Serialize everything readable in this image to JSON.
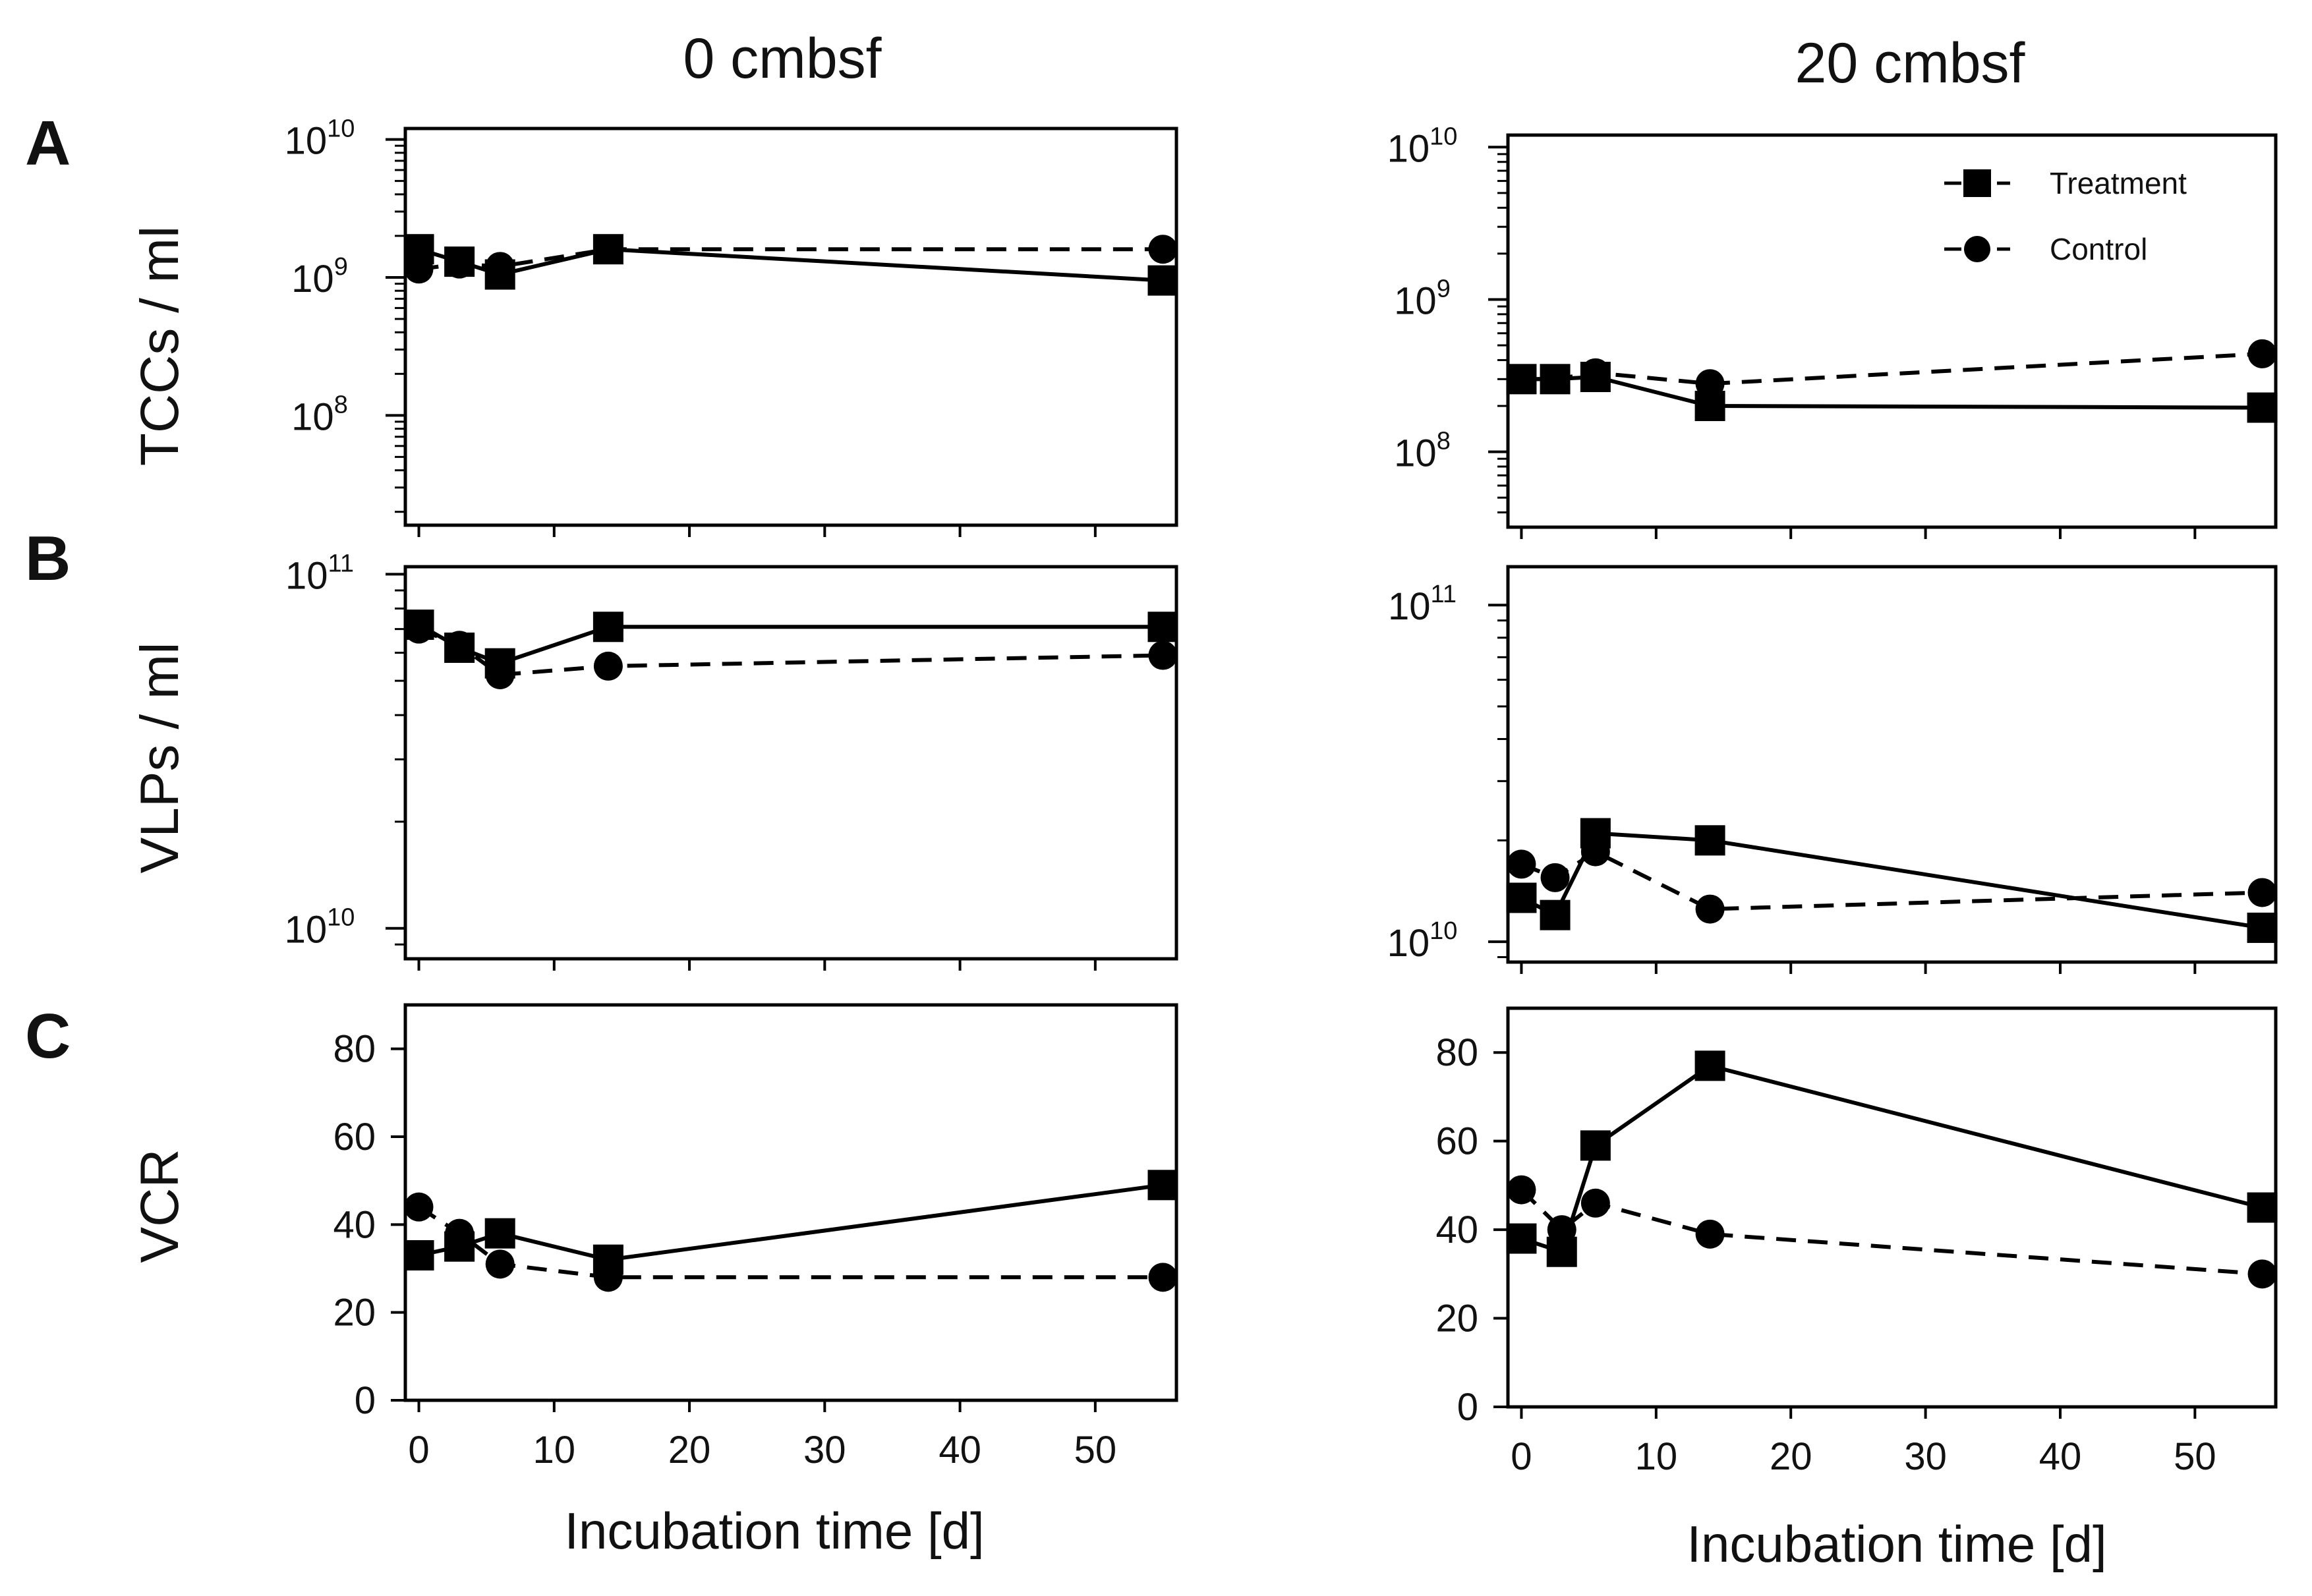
{
  "columns": [
    "0 cmbsf",
    "20 cmbsf"
  ],
  "panel_letters": [
    "A",
    "B",
    "C"
  ],
  "x_axis": {
    "label": "Incubation time [d]",
    "ticks": [
      0,
      10,
      20,
      30,
      40,
      50
    ],
    "lim": [
      -1,
      56
    ]
  },
  "legend": {
    "treatment": "Treatment",
    "control": "Control",
    "treatment_style": "solid line, filled square marker",
    "control_style": "dashed line, filled circle marker"
  },
  "colors": {
    "ink": "#000000",
    "background": "#ffffff"
  },
  "chart_data": [
    {
      "type": "line",
      "panel": "A",
      "column": "0 cmbsf",
      "ylabel": "TCCs / ml",
      "yscale": "log",
      "ylim": [
        16000000.0,
        12000000000.0
      ],
      "yticks": [
        {
          "base": "10",
          "exp": "8",
          "value": 100000000.0
        },
        {
          "base": "10",
          "exp": "9",
          "value": 1000000000.0
        },
        {
          "base": "10",
          "exp": "10",
          "value": 10000000000.0
        }
      ],
      "series": [
        {
          "name": "Treatment",
          "x": [
            0,
            3,
            6,
            14,
            55
          ],
          "values": [
            1600000000.0,
            1300000000.0,
            1050000000.0,
            1600000000.0,
            950000000.0
          ]
        },
        {
          "name": "Control",
          "x": [
            0,
            3,
            6,
            14,
            55
          ],
          "values": [
            1150000000.0,
            1250000000.0,
            1200000000.0,
            1600000000.0,
            1600000000.0
          ]
        }
      ]
    },
    {
      "type": "line",
      "panel": "A",
      "column": "20 cmbsf",
      "ylabel": "TCCs / ml",
      "yscale": "log",
      "ylim": [
        32000000.0,
        12000000000.0
      ],
      "yticks": [
        {
          "base": "10",
          "exp": "8",
          "value": 100000000.0
        },
        {
          "base": "10",
          "exp": "9",
          "value": 1000000000.0
        },
        {
          "base": "10",
          "exp": "10",
          "value": 10000000000.0
        }
      ],
      "series": [
        {
          "name": "Treatment",
          "x": [
            0,
            2.5,
            5.5,
            14,
            55
          ],
          "values": [
            300000000.0,
            300000000.0,
            310000000.0,
            200000000.0,
            195000000.0
          ]
        },
        {
          "name": "Control",
          "x": [
            0,
            2.5,
            5.5,
            14,
            55
          ],
          "values": [
            300000000.0,
            300000000.0,
            330000000.0,
            280000000.0,
            440000000.0
          ]
        }
      ]
    },
    {
      "type": "line",
      "panel": "B",
      "column": "0 cmbsf",
      "ylabel": "VLPs / ml",
      "yscale": "log",
      "ylim": [
        8200000000.0,
        105000000000.0
      ],
      "yticks": [
        {
          "base": "10",
          "exp": "10",
          "value": 10000000000.0
        },
        {
          "base": "10",
          "exp": "11",
          "value": 100000000000.0
        }
      ],
      "series": [
        {
          "name": "Treatment",
          "x": [
            0,
            3,
            6,
            14,
            55
          ],
          "values": [
            72000000000.0,
            62000000000.0,
            56000000000.0,
            71000000000.0,
            71000000000.0
          ]
        },
        {
          "name": "Control",
          "x": [
            0,
            3,
            6,
            14,
            55
          ],
          "values": [
            70000000000.0,
            63000000000.0,
            52000000000.0,
            55000000000.0,
            59000000000.0
          ]
        }
      ]
    },
    {
      "type": "line",
      "panel": "B",
      "column": "20 cmbsf",
      "ylabel": "VLPs / ml",
      "yscale": "log",
      "ylim": [
        8700000000.0,
        130000000000.0
      ],
      "yticks": [
        {
          "base": "10",
          "exp": "10",
          "value": 10000000000.0
        },
        {
          "base": "10",
          "exp": "11",
          "value": 100000000000.0
        }
      ],
      "series": [
        {
          "name": "Treatment",
          "x": [
            0,
            2.5,
            5.5,
            14,
            55
          ],
          "values": [
            13500000000.0,
            12000000000.0,
            21000000000.0,
            20000000000.0,
            11000000000.0
          ]
        },
        {
          "name": "Control",
          "x": [
            0,
            2.5,
            5.5,
            14,
            55
          ],
          "values": [
            17000000000.0,
            15500000000.0,
            18500000000.0,
            12500000000.0,
            14000000000.0
          ]
        }
      ]
    },
    {
      "type": "line",
      "panel": "C",
      "column": "0 cmbsf",
      "ylabel": "VCR",
      "yscale": "linear",
      "ylim": [
        0,
        90
      ],
      "yticks": [
        {
          "label": "0",
          "value": 0
        },
        {
          "label": "20",
          "value": 20
        },
        {
          "label": "40",
          "value": 40
        },
        {
          "label": "60",
          "value": 60
        },
        {
          "label": "80",
          "value": 80
        }
      ],
      "series": [
        {
          "name": "Treatment",
          "x": [
            0,
            3,
            6,
            14,
            55
          ],
          "values": [
            33,
            35,
            38,
            32,
            49
          ]
        },
        {
          "name": "Control",
          "x": [
            0,
            3,
            6,
            14,
            55
          ],
          "values": [
            44,
            38,
            31,
            28,
            28
          ]
        }
      ]
    },
    {
      "type": "line",
      "panel": "C",
      "column": "20 cmbsf",
      "ylabel": "VCR",
      "yscale": "linear",
      "ylim": [
        0,
        90
      ],
      "yticks": [
        {
          "label": "0",
          "value": 0
        },
        {
          "label": "20",
          "value": 20
        },
        {
          "label": "40",
          "value": 40
        },
        {
          "label": "60",
          "value": 60
        },
        {
          "label": "80",
          "value": 80
        }
      ],
      "series": [
        {
          "name": "Treatment",
          "x": [
            0,
            3,
            5.5,
            14,
            55
          ],
          "values": [
            38,
            35,
            59,
            77,
            45
          ]
        },
        {
          "name": "Control",
          "x": [
            0,
            3,
            5.5,
            14,
            55
          ],
          "values": [
            49,
            40,
            46,
            39,
            30
          ]
        }
      ]
    }
  ]
}
